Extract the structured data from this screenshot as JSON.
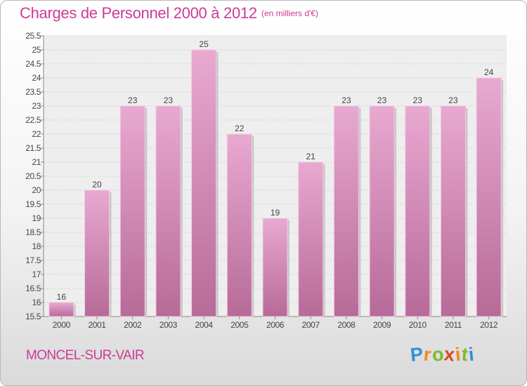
{
  "chart_data": {
    "type": "bar",
    "title": "Charges de Personnel 2000 à 2012",
    "subtitle": "(en milliers d'€)",
    "categories": [
      "2000",
      "2001",
      "2002",
      "2003",
      "2004",
      "2005",
      "2006",
      "2007",
      "2008",
      "2009",
      "2010",
      "2011",
      "2012"
    ],
    "values": [
      16,
      20,
      23,
      23,
      25,
      22,
      19,
      21,
      23,
      23,
      23,
      23,
      24
    ],
    "ylim": [
      15.5,
      25.5
    ],
    "yticks": [
      "15.5",
      "16",
      "16.5",
      "17",
      "17.5",
      "18",
      "18.5",
      "19",
      "19.5",
      "20",
      "20.5",
      "21",
      "21.5",
      "22",
      "22.5",
      "23",
      "23.5",
      "24",
      "24.5",
      "25",
      "25.5"
    ],
    "grid": true,
    "bar_color": "#c9609f"
  },
  "footer": {
    "town": "MONCEL-SUR-VAIR",
    "logo": {
      "letters": [
        "P",
        "r",
        "o",
        "x",
        "i",
        "t",
        "i"
      ],
      "colors": [
        "#2f8fd8",
        "#f28a1a",
        "#7cba2f",
        "#e0452a",
        "#f28a1a",
        "#7cba2f",
        "#2f8fd8"
      ]
    }
  }
}
